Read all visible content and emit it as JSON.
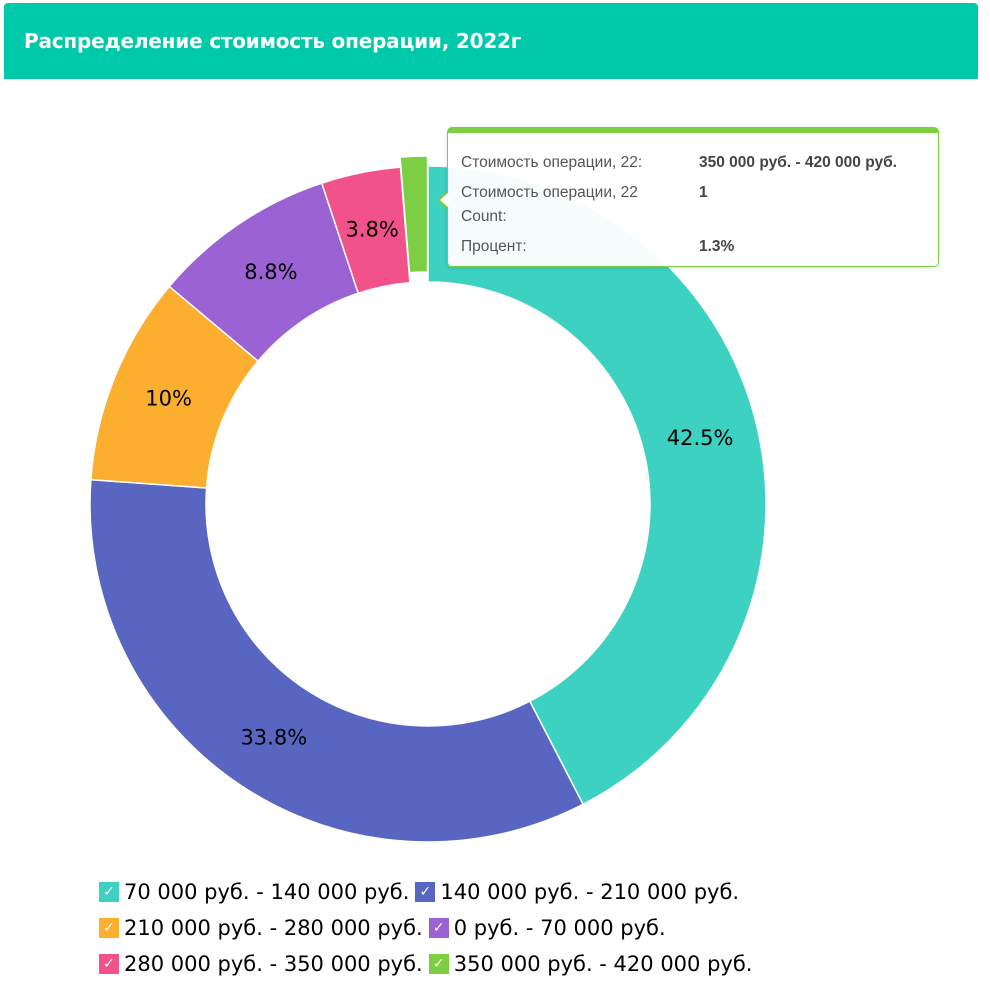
{
  "header": {
    "title": "Распределение стоимость операции, 2022г"
  },
  "tooltip": {
    "rows": [
      {
        "label": "Стоимость операции, 22:",
        "value": "350 000 руб. - 420 000 руб."
      },
      {
        "label": "Стоимость операции, 22",
        "label2": "Count:",
        "value": "1"
      },
      {
        "label": "Процент:",
        "value": "1.3%"
      }
    ]
  },
  "chart_data": {
    "type": "pie",
    "donut": true,
    "slices": [
      {
        "name": "70 000 руб. - 140 000 руб.",
        "value": 42.5,
        "label": "42.5%",
        "color": "#3cd1c1"
      },
      {
        "name": "140 000 руб. - 210 000 руб.",
        "value": 33.8,
        "label": "33.8%",
        "color": "#5866c1"
      },
      {
        "name": "210 000 руб. - 280 000 руб.",
        "value": 10,
        "label": "10%",
        "color": "#fcae2e"
      },
      {
        "name": "0 руб. - 70 000 руб.",
        "value": 8.8,
        "label": "8.8%",
        "color": "#9b62d3"
      },
      {
        "name": "280 000 руб. - 350 000 руб.",
        "value": 3.8,
        "label": "3.8%",
        "color": "#f2528a"
      },
      {
        "name": "350 000 руб. - 420 000 руб.",
        "value": 1.3,
        "label": "",
        "color": "#7ccf43",
        "highlighted": true
      }
    ],
    "legend_position": "bottom",
    "legend_checked": true
  }
}
